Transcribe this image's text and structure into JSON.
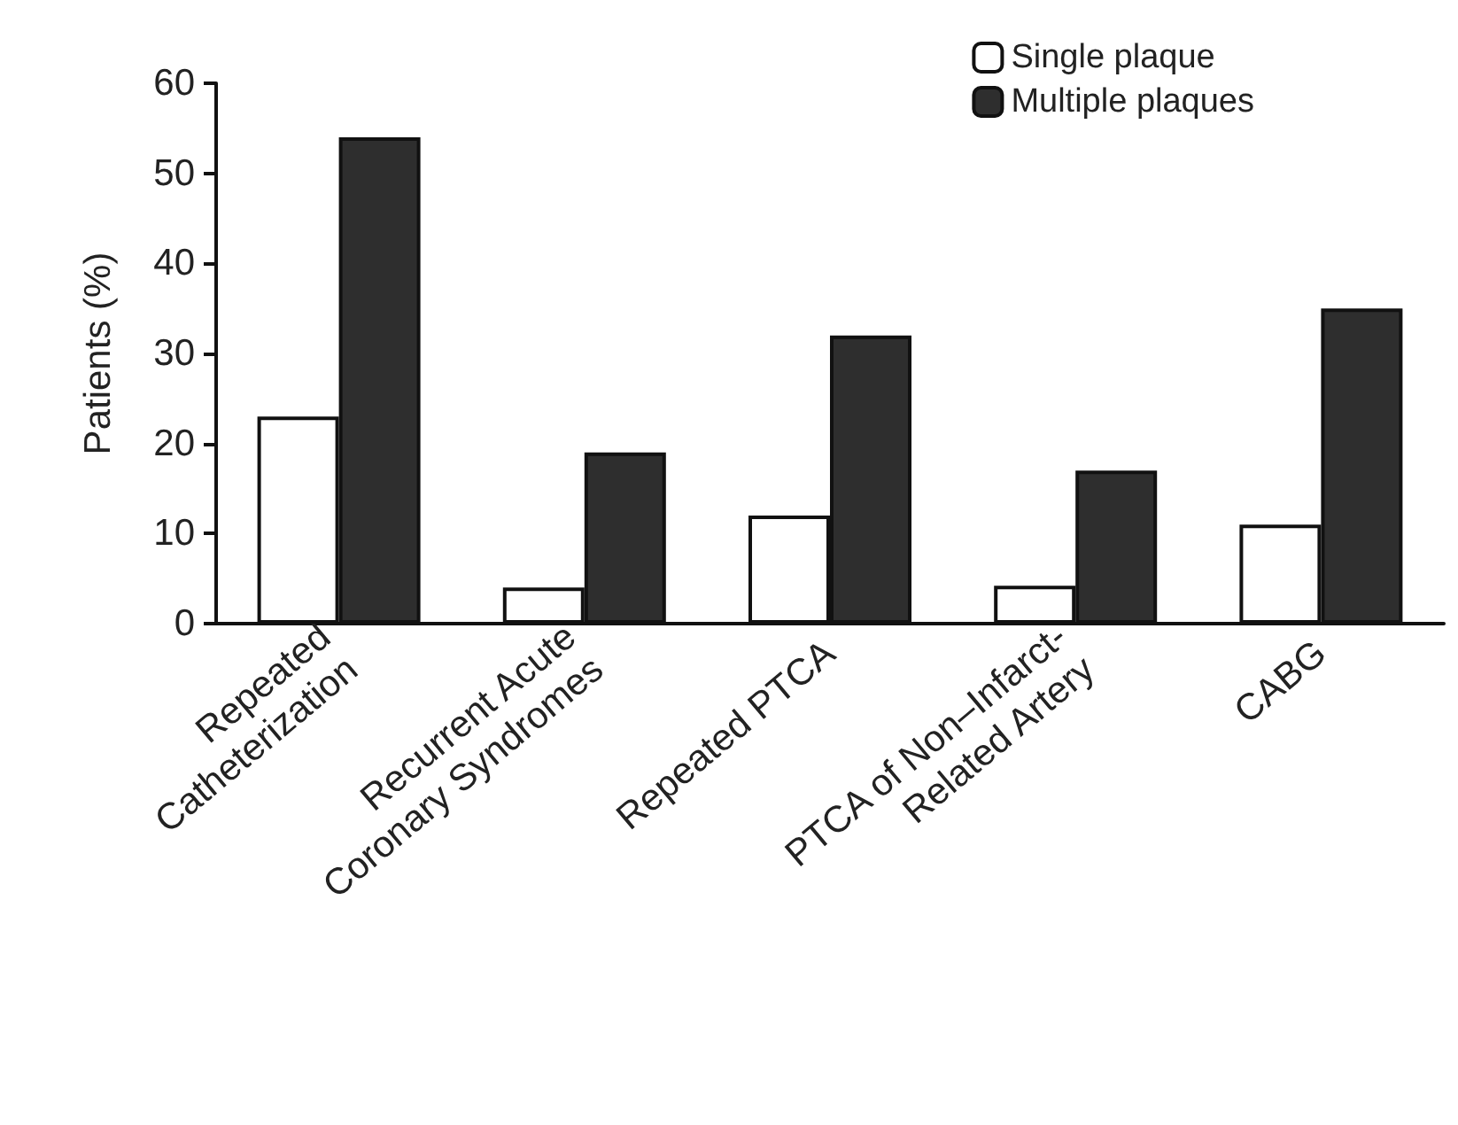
{
  "chart_data": {
    "type": "bar",
    "ylabel": "Patients (%)",
    "categories": [
      "Repeated\nCatheterization",
      "Recurrent Acute\nCoronary Syndromes",
      "Repeated PTCA",
      "PTCA of Non–Infarct-\nRelated Artery",
      "CABG"
    ],
    "series": [
      {
        "name": "Single plaque",
        "color": "#ffffff",
        "values": [
          23,
          4,
          12,
          4.2,
          11
        ]
      },
      {
        "name": "Multiple plaques",
        "color": "#2e2e2e",
        "values": [
          54,
          19,
          32,
          17,
          35
        ]
      }
    ],
    "ylim": [
      0,
      60
    ],
    "yticks": [
      0,
      10,
      20,
      30,
      40,
      50,
      60
    ],
    "grid": false,
    "legend": "top right"
  }
}
